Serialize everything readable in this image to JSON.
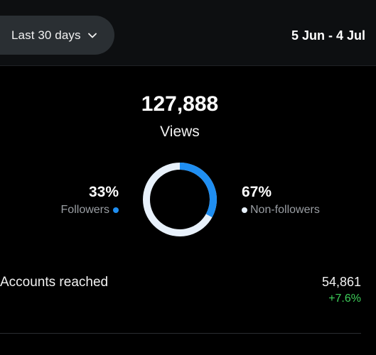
{
  "header": {
    "range_selector": {
      "label": "Last 30 days",
      "icon": "chevron-down-icon"
    },
    "date_range": "5 Jun - 4 Jul"
  },
  "summary": {
    "total": "127,888",
    "metric": "Views"
  },
  "breakdown": {
    "followers": {
      "percent": "33%",
      "label": "Followers",
      "value": 0.33,
      "color": "#1f8ef1"
    },
    "non_followers": {
      "percent": "67%",
      "label": "Non-followers",
      "value": 0.67,
      "color": "#e8f1fb"
    }
  },
  "metrics": [
    {
      "label": "Accounts reached",
      "value": "54,861",
      "change": "+7.6%",
      "change_color": "#3ecf5a"
    }
  ]
}
